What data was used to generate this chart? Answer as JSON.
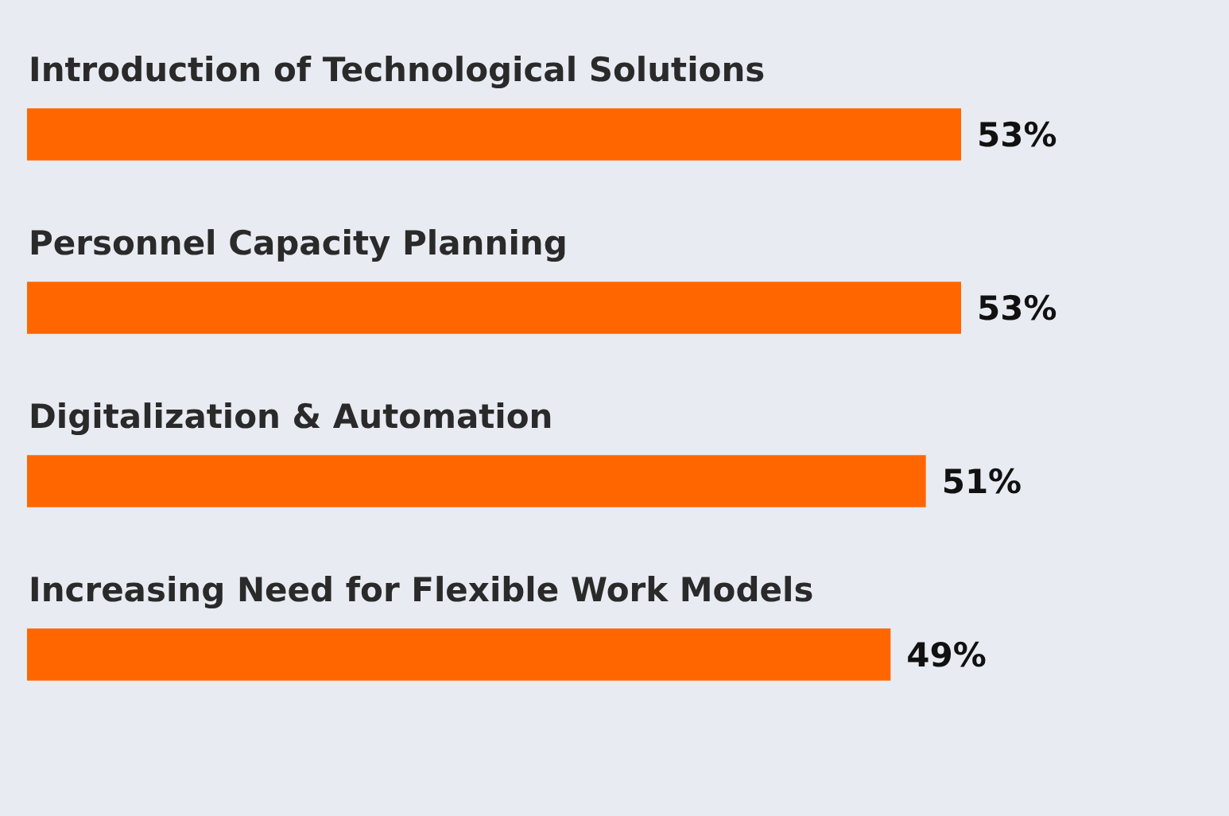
{
  "chart_data": {
    "type": "bar",
    "orientation": "horizontal",
    "categories": [
      "Introduction of Technological Solutions",
      "Personnel Capacity Planning",
      "Digitalization & Automation",
      "Increasing Need for Flexible Work Models"
    ],
    "values": [
      53,
      53,
      51,
      49
    ],
    "color": "#ff6600",
    "value_labels": [
      "53%",
      "53%",
      "51%",
      "49%"
    ],
    "legend": false
  }
}
